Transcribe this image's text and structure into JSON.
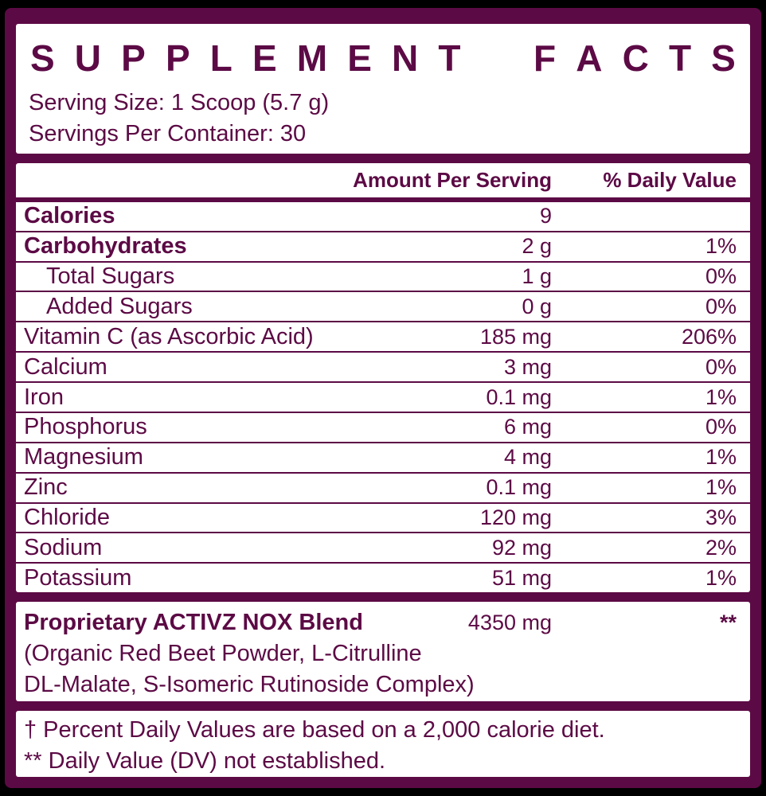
{
  "colors": {
    "accent": "#5C0A45",
    "panel_background": "#FFFFFF",
    "page_background": "#000000"
  },
  "header": {
    "title": "SUPPLEMENT FACTS",
    "serving_size": "Serving Size: 1 Scoop (5.7 g)",
    "servings_per_container": "Servings Per Container: 30"
  },
  "table": {
    "columns": {
      "amount": "Amount Per Serving",
      "dv": "% Daily Value"
    },
    "rows": [
      {
        "name": "Calories",
        "amount": "9",
        "dv": ""
      },
      {
        "name": "Carbohydrates",
        "amount": "2 g",
        "dv": "1%"
      },
      {
        "name": "Total Sugars",
        "amount": "1 g",
        "dv": "0%"
      },
      {
        "name": "Added Sugars",
        "amount": "0 g",
        "dv": "0%"
      },
      {
        "name": "Vitamin C (as Ascorbic Acid)",
        "amount": "185 mg",
        "dv": "206%"
      },
      {
        "name": "Calcium",
        "amount": "3 mg",
        "dv": "0%"
      },
      {
        "name": "Iron",
        "amount": "0.1 mg",
        "dv": "1%"
      },
      {
        "name": "Phosphorus",
        "amount": "6 mg",
        "dv": "0%"
      },
      {
        "name": "Magnesium",
        "amount": "4 mg",
        "dv": "1%"
      },
      {
        "name": "Zinc",
        "amount": "0.1 mg",
        "dv": "1%"
      },
      {
        "name": "Chloride",
        "amount": "120 mg",
        "dv": "3%"
      },
      {
        "name": "Sodium",
        "amount": "92 mg",
        "dv": "2%"
      },
      {
        "name": "Potassium",
        "amount": "51 mg",
        "dv": "1%"
      }
    ]
  },
  "blend": {
    "name": "Proprietary ACTIVZ NOX Blend",
    "amount": "4350 mg",
    "dv": "**",
    "description_line1": "(Organic Red Beet Powder, L-Citrulline",
    "description_line2": "DL-Malate, S-Isomeric Rutinoside Complex)"
  },
  "footnotes": {
    "line1": "† Percent Daily Values are based on a 2,000 calorie diet.",
    "line2": "** Daily Value (DV) not established."
  }
}
